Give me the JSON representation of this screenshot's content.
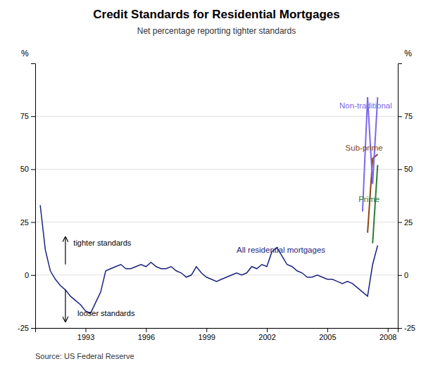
{
  "chart_data": {
    "type": "line",
    "title": "Credit Standards for Residential Mortgages",
    "subtitle": "Net percentage reporting tighter standards",
    "source": "Source: US Federal Reserve",
    "ylabel": "%",
    "y2label": "%",
    "xlim": [
      1990.5,
      2008.5
    ],
    "xticks": [
      1993,
      1996,
      1999,
      2002,
      2005,
      2008
    ],
    "ylim": [
      -25,
      100
    ],
    "yticks": [
      -25,
      0,
      25,
      50,
      75
    ],
    "y2lim": [
      -25,
      100
    ],
    "y2ticks": [
      -25,
      0,
      25,
      50,
      75
    ],
    "grid": true,
    "series": [
      {
        "name": "All residential mortgages",
        "color": "#1a237e",
        "label_x": 2000.5,
        "label_y": 12,
        "x": [
          1990.75,
          1991.0,
          1991.25,
          1991.5,
          1991.75,
          1992.0,
          1992.25,
          1992.5,
          1992.75,
          1993.0,
          1993.25,
          1993.5,
          1993.75,
          1994.0,
          1994.25,
          1994.5,
          1994.75,
          1995.0,
          1995.25,
          1995.5,
          1995.75,
          1996.0,
          1996.25,
          1996.5,
          1996.75,
          1997.0,
          1997.25,
          1997.5,
          1997.75,
          1998.0,
          1998.25,
          1998.5,
          1998.75,
          1999.0,
          1999.25,
          1999.5,
          1999.75,
          2000.0,
          2000.25,
          2000.5,
          2000.75,
          2001.0,
          2001.25,
          2001.5,
          2001.75,
          2002.0,
          2002.25,
          2002.5,
          2002.75,
          2003.0,
          2003.25,
          2003.5,
          2003.75,
          2004.0,
          2004.25,
          2004.5,
          2004.75,
          2005.0,
          2005.25,
          2005.5,
          2005.75,
          2006.0,
          2006.25,
          2006.5,
          2006.75,
          2007.0,
          2007.25,
          2007.5
        ],
        "values": [
          33,
          12,
          2,
          -2,
          -5,
          -7,
          -10,
          -12,
          -14,
          -17,
          -18,
          -13,
          -8,
          2,
          3,
          4,
          5,
          3,
          3,
          4,
          5,
          4,
          6,
          4,
          3,
          3,
          4,
          2,
          1,
          -1,
          0,
          4,
          1,
          -1,
          -2,
          -3,
          -2,
          -1,
          0,
          1,
          0,
          1,
          4,
          3,
          5,
          4,
          11,
          13,
          9,
          5,
          4,
          2,
          1,
          -1,
          -1,
          0,
          -1,
          -2,
          -2,
          -3,
          -4,
          -3,
          -4,
          -6,
          -8,
          -10,
          5,
          14
        ]
      },
      {
        "name": "Prime",
        "color": "#2e7d32",
        "label_x": 2006.55,
        "label_y": 36,
        "x": [
          2007.25,
          2007.5
        ],
        "values": [
          15,
          52
        ]
      },
      {
        "name": "Sub-prime",
        "color": "#8b4513",
        "label_x": 2005.9,
        "label_y": 60,
        "x": [
          2007.0,
          2007.25,
          2007.5
        ],
        "values": [
          20,
          55,
          57
        ]
      },
      {
        "name": "Non-traditional",
        "color": "#7b68ee",
        "label_x": 2005.6,
        "label_y": 80,
        "x": [
          2006.75,
          2007.0,
          2007.25,
          2007.5
        ],
        "values": [
          30,
          84,
          43,
          84
        ]
      }
    ],
    "arrows": [
      {
        "x": 1992.0,
        "y_start": 5,
        "y_end": 18
      },
      {
        "x": 1992.0,
        "y_start": -7,
        "y_end": -22
      }
    ],
    "annotations": [
      {
        "text": "tighter standards",
        "x": 1992.4,
        "y": 13
      },
      {
        "text": "looser standards",
        "x": 1992.6,
        "y": -16
      }
    ]
  }
}
